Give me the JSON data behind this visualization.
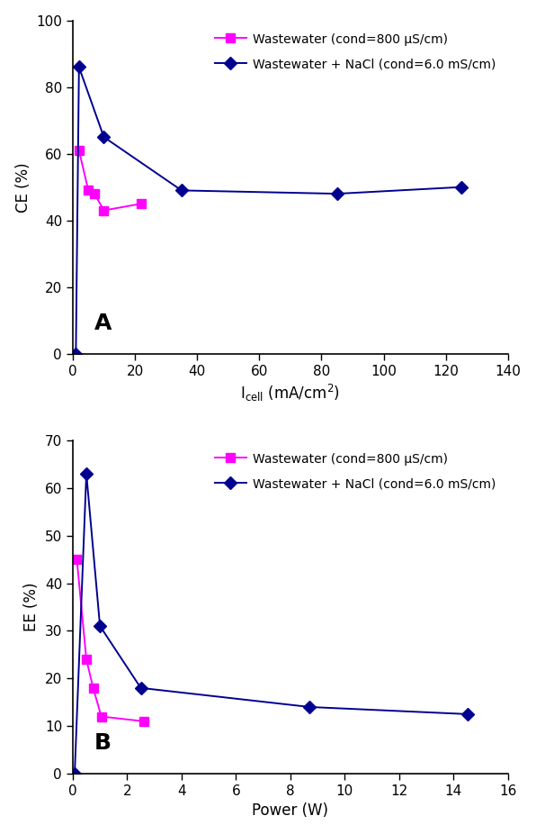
{
  "panel_A": {
    "label": "A",
    "xlabel": "I_cell (mA/cm^2)",
    "ylabel": "CE (%)",
    "xlim": [
      0,
      140
    ],
    "ylim": [
      0,
      100
    ],
    "xticks": [
      0,
      20,
      40,
      60,
      80,
      100,
      120,
      140
    ],
    "yticks": [
      0,
      20,
      40,
      60,
      80,
      100
    ],
    "series1": {
      "label": "Wastewater (cond=800 μS/cm)",
      "color": "#FF00FF",
      "marker": "s",
      "x": [
        2,
        5,
        7,
        10,
        22
      ],
      "y": [
        61,
        49,
        48,
        43,
        45
      ]
    },
    "series2": {
      "label": "Wastewater + NaCl (cond=6.0 mS/cm)",
      "color": "#000090",
      "marker": "D",
      "x": [
        1,
        2,
        10,
        35,
        85,
        125
      ],
      "y": [
        0,
        86,
        65,
        49,
        48,
        50
      ]
    }
  },
  "panel_B": {
    "label": "B",
    "xlabel": "Power (W)",
    "ylabel": "EE (%)",
    "xlim": [
      0,
      16
    ],
    "ylim": [
      0,
      70
    ],
    "xticks": [
      0,
      2,
      4,
      6,
      8,
      10,
      12,
      14,
      16
    ],
    "yticks": [
      0,
      10,
      20,
      30,
      40,
      50,
      60,
      70
    ],
    "series1": {
      "label": "Wastewater (cond=800 μS/cm)",
      "color": "#FF00FF",
      "marker": "s",
      "x": [
        0.15,
        0.5,
        0.75,
        1.05,
        2.6
      ],
      "y": [
        45,
        24,
        18,
        12,
        11
      ]
    },
    "series2": {
      "label": "Wastewater + NaCl (cond=6.0 mS/cm)",
      "color": "#000090",
      "marker": "D",
      "x": [
        0.07,
        0.5,
        1.0,
        2.5,
        8.7,
        14.5
      ],
      "y": [
        0,
        63,
        31,
        18,
        14,
        12.5
      ]
    }
  }
}
